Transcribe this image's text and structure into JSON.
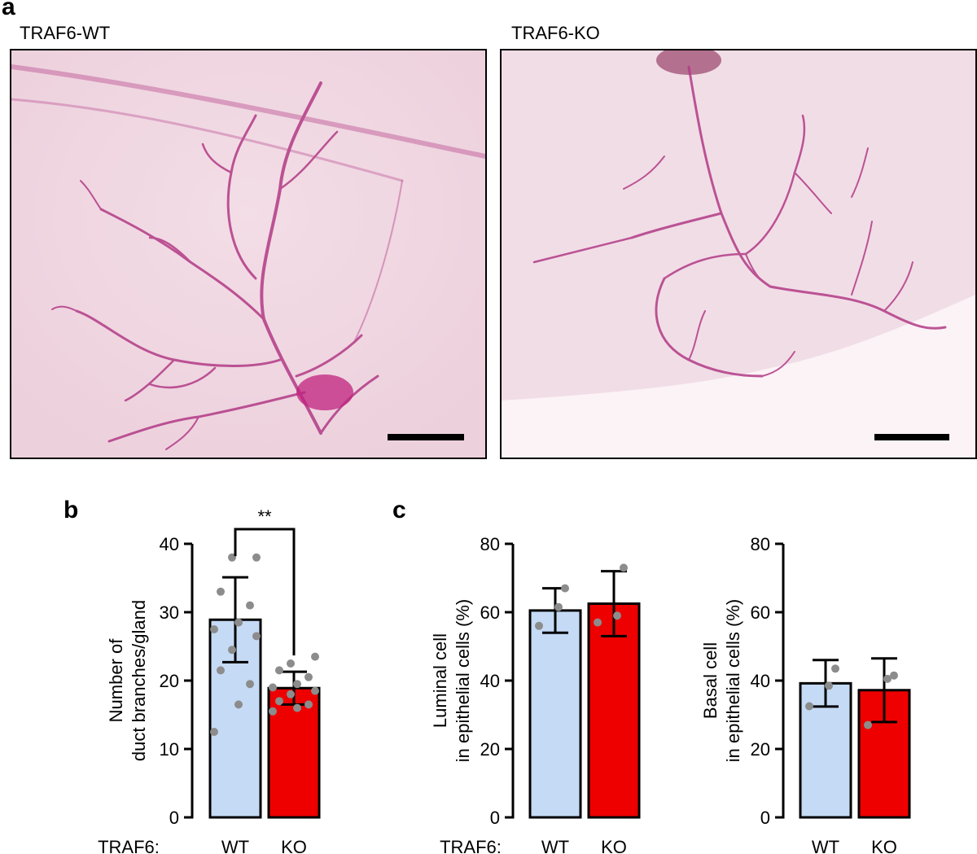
{
  "panels": {
    "a": "a",
    "b": "b",
    "c": "c"
  },
  "images": [
    {
      "label": "TRAF6-WT"
    },
    {
      "label": "TRAF6-KO"
    }
  ],
  "colors": {
    "wt_fill": "#c5daf5",
    "ko_fill": "#ee0000",
    "dot": "#8c8c8c",
    "stain": "#b0287e"
  },
  "chart_data": [
    {
      "type": "bar",
      "panel": "b",
      "categories": [
        "WT",
        "KO"
      ],
      "group_label": "TRAF6:",
      "values": [
        28.9,
        18.9
      ],
      "errors": [
        6.2,
        2.4
      ],
      "points": [
        [
          12.5,
          16.5,
          19.5,
          21.5,
          24.5,
          26.5,
          27.5,
          28.5,
          31,
          33,
          38,
          38
        ],
        [
          15.5,
          16,
          16.5,
          17,
          18,
          18.5,
          19,
          19.5,
          20.5,
          21.5,
          22.5,
          23.5
        ]
      ],
      "ylabel": [
        "Number of",
        "duct branches/gland"
      ],
      "ylim": [
        0,
        40
      ],
      "yticks": [
        0,
        10,
        20,
        30,
        40
      ],
      "significance": "**"
    },
    {
      "type": "bar",
      "panel": "c",
      "categories": [
        "WT",
        "KO"
      ],
      "group_label": "TRAF6:",
      "values": [
        60.5,
        62.5
      ],
      "errors": [
        6.5,
        9.5
      ],
      "points": [
        [
          56,
          61.5,
          67
        ],
        [
          57,
          59,
          73
        ]
      ],
      "ylabel": [
        "Luminal cell",
        "in epithelial cells (%)"
      ],
      "ylim": [
        0,
        80
      ],
      "yticks": [
        0,
        20,
        40,
        60,
        80
      ]
    },
    {
      "type": "bar",
      "panel": "c",
      "categories": [
        "WT",
        "KO"
      ],
      "group_label": "",
      "values": [
        39.2,
        37.2
      ],
      "errors": [
        6.8,
        9.3
      ],
      "points": [
        [
          32.5,
          38.5,
          43.5
        ],
        [
          27,
          40.5,
          41.5
        ]
      ],
      "ylabel": [
        "Basal cell",
        "in epithelial cells (%)"
      ],
      "ylim": [
        0,
        80
      ],
      "yticks": [
        0,
        20,
        40,
        60,
        80
      ]
    }
  ]
}
